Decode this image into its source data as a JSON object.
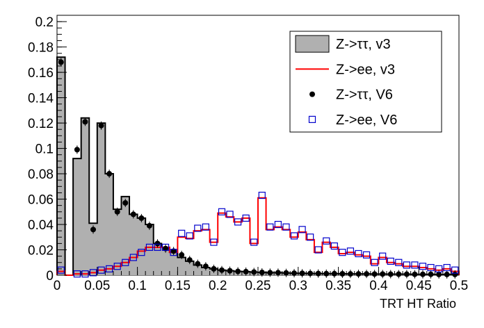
{
  "chart_data": {
    "type": "histogram",
    "title": "",
    "xlabel": "TRT HT Ratio",
    "ylabel": "",
    "xlim": [
      0,
      0.5
    ],
    "ylim": [
      0,
      0.205
    ],
    "bin_width": 0.01,
    "x_ticks": [
      0,
      0.05,
      0.1,
      0.15,
      0.2,
      0.25,
      0.3,
      0.35,
      0.4,
      0.45,
      0.5
    ],
    "x_tick_labels": [
      "0",
      "0.05",
      "0.1",
      "0.15",
      "0.2",
      "0.25",
      "0.3",
      "0.35",
      "0.4",
      "0.45",
      "0.5"
    ],
    "y_ticks": [
      0,
      0.02,
      0.04,
      0.06,
      0.08,
      0.1,
      0.12,
      0.14,
      0.16,
      0.18,
      0.2
    ],
    "y_tick_labels": [
      "0",
      "0.02",
      "0.04",
      "0.06",
      "0.08",
      "0.1",
      "0.12",
      "0.14",
      "0.16",
      "0.18",
      "0.2"
    ],
    "series": [
      {
        "name": "Z->ττ, v3",
        "legend": "Z->ττ, v3",
        "style": "filled-histogram",
        "fill": "#b0b0b0",
        "line": "#000000",
        "values": [
          0.172,
          0.0,
          0.092,
          0.124,
          0.041,
          0.12,
          0.08,
          0.052,
          0.062,
          0.048,
          0.045,
          0.04,
          0.025,
          0.022,
          0.018,
          0.014,
          0.011,
          0.008,
          0.006,
          0.005,
          0.004,
          0.0035,
          0.003,
          0.0028,
          0.0025,
          0.0022,
          0.002,
          0.002,
          0.0018,
          0.0016,
          0.0015,
          0.0014,
          0.0013,
          0.0012,
          0.0012,
          0.0011,
          0.001,
          0.001,
          0.001,
          0.0009,
          0.0009,
          0.0008,
          0.0008,
          0.0008,
          0.0007,
          0.0007,
          0.0007,
          0.0006,
          0.0006,
          0.0006
        ]
      },
      {
        "name": "Z->ee, v3",
        "legend": "Z->ee, v3",
        "style": "line-histogram",
        "line": "#ff0000",
        "values": [
          0.003,
          0.0,
          0.001,
          0.001,
          0.002,
          0.004,
          0.005,
          0.007,
          0.01,
          0.014,
          0.019,
          0.022,
          0.022,
          0.022,
          0.018,
          0.03,
          0.029,
          0.035,
          0.036,
          0.026,
          0.049,
          0.046,
          0.042,
          0.045,
          0.025,
          0.061,
          0.036,
          0.038,
          0.036,
          0.03,
          0.034,
          0.028,
          0.018,
          0.026,
          0.022,
          0.017,
          0.018,
          0.016,
          0.015,
          0.009,
          0.014,
          0.01,
          0.009,
          0.007,
          0.007,
          0.006,
          0.005,
          0.004,
          0.005,
          0.003
        ]
      },
      {
        "name": "Z->ττ, V6",
        "legend": "Z->ττ, V6",
        "style": "filled-circle-markers",
        "marker": "#000000",
        "values": [
          0.168,
          null,
          0.099,
          0.121,
          0.036,
          0.118,
          0.08,
          0.05,
          0.057,
          0.048,
          0.045,
          0.039,
          0.025,
          0.021,
          0.019,
          0.016,
          0.012,
          0.009,
          0.007,
          0.005,
          0.004,
          0.0035,
          0.003,
          0.0028,
          0.0025,
          0.0022,
          0.002,
          0.002,
          0.0018,
          0.0016,
          0.0015,
          0.0014,
          0.0013,
          0.0012,
          0.0012,
          0.0011,
          0.001,
          0.001,
          0.001,
          0.0009,
          0.0009,
          0.0008,
          0.0008,
          0.0008,
          0.0007,
          0.0007,
          0.0007,
          0.0006,
          0.0006,
          0.0006
        ]
      },
      {
        "name": "Z->ee, V6",
        "legend": "Z->ee, V6",
        "style": "open-square-markers",
        "marker": "#0000cc",
        "values": [
          0.004,
          null,
          0.001,
          0.001,
          0.002,
          0.004,
          0.005,
          0.007,
          0.01,
          0.014,
          0.018,
          0.022,
          0.022,
          0.022,
          0.018,
          0.033,
          0.031,
          0.037,
          0.038,
          0.026,
          0.05,
          0.048,
          0.042,
          0.045,
          0.026,
          0.063,
          0.038,
          0.04,
          0.038,
          0.031,
          0.036,
          0.03,
          0.02,
          0.027,
          0.023,
          0.018,
          0.019,
          0.017,
          0.016,
          0.01,
          0.015,
          0.011,
          0.01,
          0.008,
          0.008,
          0.007,
          0.006,
          0.005,
          0.006,
          0.004
        ]
      }
    ],
    "legend_position": "top-right"
  }
}
